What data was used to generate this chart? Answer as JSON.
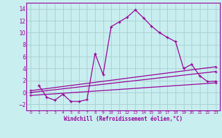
{
  "xlabel": "Windchill (Refroidissement éolien,°C)",
  "background_color": "#c8eef0",
  "grid_color": "#b0d8dc",
  "line_color": "#990099",
  "xlim": [
    -0.5,
    23.5
  ],
  "ylim": [
    -3.0,
    15.0
  ],
  "yticks": [
    -2,
    0,
    2,
    4,
    6,
    8,
    10,
    12,
    14
  ],
  "xticks": [
    0,
    1,
    2,
    3,
    4,
    5,
    6,
    7,
    8,
    9,
    10,
    11,
    12,
    13,
    14,
    15,
    16,
    17,
    18,
    19,
    20,
    21,
    22,
    23
  ],
  "series": [
    [
      1,
      1.2
    ],
    [
      2,
      -0.8
    ],
    [
      3,
      -1.3
    ],
    [
      4,
      -0.3
    ],
    [
      5,
      -1.5
    ],
    [
      6,
      -1.5
    ],
    [
      7,
      -1.2
    ],
    [
      8,
      6.5
    ],
    [
      9,
      3.0
    ],
    [
      10,
      11.0
    ],
    [
      11,
      11.8
    ],
    [
      12,
      12.6
    ],
    [
      13,
      13.8
    ],
    [
      14,
      12.5
    ],
    [
      15,
      11.1
    ],
    [
      16,
      10.0
    ],
    [
      17,
      9.2
    ],
    [
      18,
      8.5
    ],
    [
      19,
      4.0
    ],
    [
      20,
      4.7
    ],
    [
      21,
      2.8
    ],
    [
      22,
      1.8
    ],
    [
      23,
      1.9
    ]
  ],
  "line2": [
    [
      0,
      -0.5
    ],
    [
      23,
      1.6
    ]
  ],
  "line3": [
    [
      0,
      0.0
    ],
    [
      23,
      3.5
    ]
  ],
  "line4": [
    [
      0,
      0.3
    ],
    [
      23,
      4.3
    ]
  ]
}
